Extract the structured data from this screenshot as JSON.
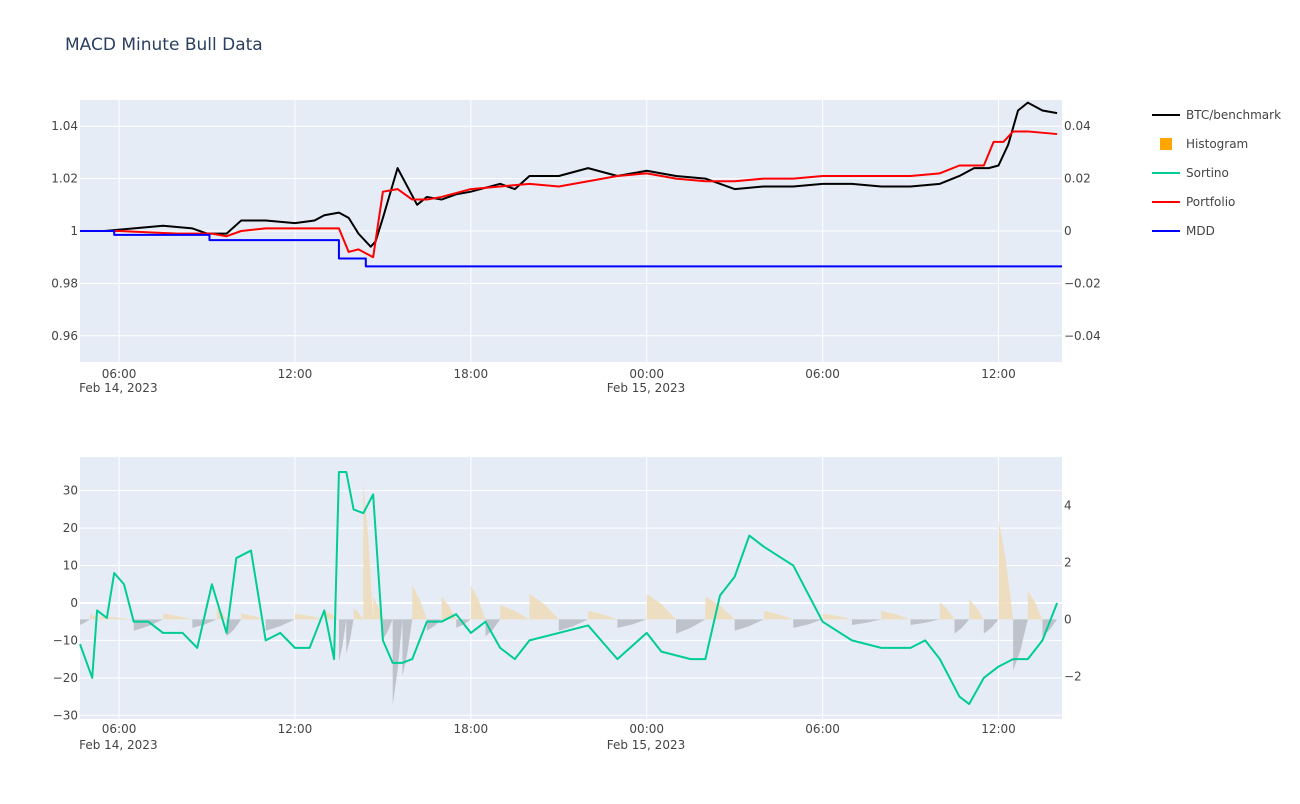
{
  "title": "MACD Minute Bull Data",
  "colors": {
    "plot_bg": "#e5ecf6",
    "grid": "#ffffff",
    "btc": "#000000",
    "portfolio": "#ff0000",
    "mdd": "#0000ff",
    "sortino": "#00cc96",
    "hist_pos": "#eeddbb",
    "hist_neg": "#b9bec6",
    "hist_legend": "#ffa500"
  },
  "legend": [
    {
      "label": "BTC/benchmark",
      "symbol": "line",
      "color": "#000000"
    },
    {
      "label": "Histogram",
      "symbol": "square",
      "color": "#ffa500"
    },
    {
      "label": "Sortino",
      "symbol": "line",
      "color": "#00cc96"
    },
    {
      "label": "Portfolio",
      "symbol": "line",
      "color": "#ff0000"
    },
    {
      "label": "MDD",
      "symbol": "line",
      "color": "#0000ff"
    }
  ],
  "chart_data": [
    {
      "type": "line",
      "panel": "top",
      "x_range": [
        "2023-02-14 04:40",
        "2023-02-15 14:10"
      ],
      "x_ticks": [
        {
          "t": "2023-02-14 06:00",
          "label": "06:00",
          "sublabel": "Feb 14, 2023"
        },
        {
          "t": "2023-02-14 12:00",
          "label": "12:00",
          "sublabel": ""
        },
        {
          "t": "2023-02-14 18:00",
          "label": "18:00",
          "sublabel": ""
        },
        {
          "t": "2023-02-15 00:00",
          "label": "00:00",
          "sublabel": "Feb 15, 2023"
        },
        {
          "t": "2023-02-15 06:00",
          "label": "06:00",
          "sublabel": ""
        },
        {
          "t": "2023-02-15 12:00",
          "label": "12:00",
          "sublabel": ""
        }
      ],
      "ylim_left": [
        0.95,
        1.05
      ],
      "y_ticks_left": [
        {
          "v": 0.96,
          "label": "0.96"
        },
        {
          "v": 0.98,
          "label": "0.98"
        },
        {
          "v": 1.0,
          "label": "1"
        },
        {
          "v": 1.02,
          "label": "1.02"
        },
        {
          "v": 1.04,
          "label": "1.04"
        }
      ],
      "ylim_right": [
        -0.05,
        0.05
      ],
      "y_ticks_right": [
        {
          "v": -0.04,
          "label": "−0.04"
        },
        {
          "v": -0.02,
          "label": "−0.02"
        },
        {
          "v": 0,
          "label": "0"
        },
        {
          "v": 0.02,
          "label": "0.02"
        },
        {
          "v": 0.04,
          "label": "0.04"
        }
      ],
      "grid": true,
      "series": [
        {
          "name": "BTC/benchmark",
          "axis": "left",
          "color": "#000000",
          "x": [
            "2023-02-14 04:40",
            "2023-02-14 05:30",
            "2023-02-14 06:30",
            "2023-02-14 07:30",
            "2023-02-14 08:30",
            "2023-02-14 09:00",
            "2023-02-14 09:40",
            "2023-02-14 10:10",
            "2023-02-14 11:00",
            "2023-02-14 12:00",
            "2023-02-14 12:40",
            "2023-02-14 13:00",
            "2023-02-14 13:30",
            "2023-02-14 13:50",
            "2023-02-14 14:10",
            "2023-02-14 14:35",
            "2023-02-14 14:45",
            "2023-02-14 15:00",
            "2023-02-14 15:30",
            "2023-02-14 15:50",
            "2023-02-14 16:10",
            "2023-02-14 16:30",
            "2023-02-14 17:00",
            "2023-02-14 17:30",
            "2023-02-14 18:00",
            "2023-02-14 19:00",
            "2023-02-14 19:30",
            "2023-02-14 20:00",
            "2023-02-14 21:00",
            "2023-02-14 22:00",
            "2023-02-14 23:00",
            "2023-02-15 00:00",
            "2023-02-15 01:00",
            "2023-02-15 02:00",
            "2023-02-15 03:00",
            "2023-02-15 04:00",
            "2023-02-15 05:00",
            "2023-02-15 06:00",
            "2023-02-15 07:00",
            "2023-02-15 08:00",
            "2023-02-15 09:00",
            "2023-02-15 10:00",
            "2023-02-15 10:40",
            "2023-02-15 11:10",
            "2023-02-15 11:40",
            "2023-02-15 12:00",
            "2023-02-15 12:20",
            "2023-02-15 12:40",
            "2023-02-15 13:00",
            "2023-02-15 13:30",
            "2023-02-15 14:00"
          ],
          "values": [
            1.0,
            1.0,
            1.001,
            1.002,
            1.001,
            0.999,
            0.999,
            1.004,
            1.004,
            1.003,
            1.004,
            1.006,
            1.007,
            1.005,
            0.999,
            0.994,
            0.996,
            1.005,
            1.024,
            1.017,
            1.01,
            1.013,
            1.012,
            1.014,
            1.015,
            1.018,
            1.016,
            1.021,
            1.021,
            1.024,
            1.021,
            1.023,
            1.021,
            1.02,
            1.016,
            1.017,
            1.017,
            1.018,
            1.018,
            1.017,
            1.017,
            1.018,
            1.021,
            1.024,
            1.024,
            1.025,
            1.033,
            1.046,
            1.049,
            1.046,
            1.045
          ]
        },
        {
          "name": "Portfolio",
          "axis": "left",
          "color": "#ff0000",
          "x": [
            "2023-02-14 04:40",
            "2023-02-14 06:00",
            "2023-02-14 08:00",
            "2023-02-14 09:10",
            "2023-02-14 09:40",
            "2023-02-14 10:10",
            "2023-02-14 11:00",
            "2023-02-14 12:00",
            "2023-02-14 13:00",
            "2023-02-14 13:30",
            "2023-02-14 13:50",
            "2023-02-14 14:10",
            "2023-02-14 14:40",
            "2023-02-14 15:00",
            "2023-02-14 15:30",
            "2023-02-14 16:00",
            "2023-02-14 16:30",
            "2023-02-14 17:00",
            "2023-02-14 18:00",
            "2023-02-14 19:00",
            "2023-02-14 20:00",
            "2023-02-14 21:00",
            "2023-02-14 22:00",
            "2023-02-14 23:00",
            "2023-02-15 00:00",
            "2023-02-15 01:00",
            "2023-02-15 02:00",
            "2023-02-15 03:00",
            "2023-02-15 04:00",
            "2023-02-15 05:00",
            "2023-02-15 06:00",
            "2023-02-15 07:00",
            "2023-02-15 08:00",
            "2023-02-15 09:00",
            "2023-02-15 10:00",
            "2023-02-15 10:40",
            "2023-02-15 11:00",
            "2023-02-15 11:30",
            "2023-02-15 11:50",
            "2023-02-15 12:10",
            "2023-02-15 12:30",
            "2023-02-15 13:00",
            "2023-02-15 14:00"
          ],
          "values": [
            1.0,
            1.0,
            0.999,
            0.999,
            0.998,
            1.0,
            1.001,
            1.001,
            1.001,
            1.001,
            0.992,
            0.993,
            0.99,
            1.015,
            1.016,
            1.012,
            1.012,
            1.013,
            1.016,
            1.017,
            1.018,
            1.017,
            1.019,
            1.021,
            1.022,
            1.02,
            1.019,
            1.019,
            1.02,
            1.02,
            1.021,
            1.021,
            1.021,
            1.021,
            1.022,
            1.025,
            1.025,
            1.025,
            1.034,
            1.034,
            1.038,
            1.038,
            1.037
          ]
        },
        {
          "name": "MDD",
          "axis": "right",
          "color": "#0000ff",
          "x": [
            "2023-02-14 04:40",
            "2023-02-14 05:50",
            "2023-02-14 09:05",
            "2023-02-14 13:30",
            "2023-02-14 14:25",
            "2023-02-15 14:10"
          ],
          "values": [
            0.0,
            -0.0015,
            -0.0035,
            -0.0105,
            -0.0135,
            -0.0135
          ],
          "step": true
        }
      ]
    },
    {
      "type": "line",
      "panel": "bottom",
      "x_range": [
        "2023-02-14 04:40",
        "2023-02-15 14:10"
      ],
      "ylim_left": [
        -31,
        39
      ],
      "y_ticks_left": [
        {
          "v": -30,
          "label": "−30"
        },
        {
          "v": -20,
          "label": "−20"
        },
        {
          "v": -10,
          "label": "−10"
        },
        {
          "v": 0,
          "label": "0"
        },
        {
          "v": 10,
          "label": "10"
        },
        {
          "v": 20,
          "label": "20"
        },
        {
          "v": 30,
          "label": "30"
        }
      ],
      "ylim_right": [
        -3.5,
        5.7
      ],
      "y_ticks_right": [
        {
          "v": -2,
          "label": "−2"
        },
        {
          "v": 0,
          "label": "0"
        },
        {
          "v": 2,
          "label": "2"
        },
        {
          "v": 4,
          "label": "4"
        }
      ],
      "grid": true,
      "series": [
        {
          "name": "Histogram",
          "axis": "right",
          "type": "area",
          "color_pos": "#eeddbb",
          "color_neg": "#b9bec6",
          "x": [
            "2023-02-14 04:40",
            "2023-02-14 05:00",
            "2023-02-14 05:20",
            "2023-02-14 06:30",
            "2023-02-14 07:30",
            "2023-02-14 08:30",
            "2023-02-14 09:20",
            "2023-02-14 09:40",
            "2023-02-14 10:10",
            "2023-02-14 11:00",
            "2023-02-14 12:00",
            "2023-02-14 13:00",
            "2023-02-14 13:30",
            "2023-02-14 13:45",
            "2023-02-14 14:00",
            "2023-02-14 14:20",
            "2023-02-14 14:40",
            "2023-02-14 15:00",
            "2023-02-14 15:20",
            "2023-02-14 15:40",
            "2023-02-14 16:00",
            "2023-02-14 16:30",
            "2023-02-14 17:00",
            "2023-02-14 17:30",
            "2023-02-14 18:00",
            "2023-02-14 18:30",
            "2023-02-14 19:00",
            "2023-02-14 20:00",
            "2023-02-14 21:00",
            "2023-02-14 22:00",
            "2023-02-14 23:00",
            "2023-02-15 00:00",
            "2023-02-15 01:00",
            "2023-02-15 02:00",
            "2023-02-15 03:00",
            "2023-02-15 04:00",
            "2023-02-15 05:00",
            "2023-02-15 06:00",
            "2023-02-15 07:00",
            "2023-02-15 08:00",
            "2023-02-15 09:00",
            "2023-02-15 10:00",
            "2023-02-15 10:30",
            "2023-02-15 11:00",
            "2023-02-15 11:30",
            "2023-02-15 12:00",
            "2023-02-15 12:30",
            "2023-02-15 13:00",
            "2023-02-15 13:30",
            "2023-02-15 14:00"
          ],
          "values": [
            -0.2,
            0.2,
            0.1,
            -0.4,
            0.2,
            -0.3,
            0.4,
            -0.6,
            0.2,
            -0.4,
            0.2,
            0.3,
            -1.5,
            -1.2,
            0.4,
            4.8,
            0.8,
            -0.7,
            -3.0,
            -2.0,
            1.2,
            -0.4,
            0.8,
            -0.3,
            1.2,
            -0.6,
            0.5,
            0.9,
            -0.4,
            0.3,
            -0.3,
            0.9,
            -0.5,
            0.8,
            -0.4,
            0.3,
            -0.3,
            0.2,
            -0.2,
            0.3,
            -0.2,
            0.6,
            -0.5,
            0.7,
            -0.5,
            3.5,
            -1.8,
            1.0,
            -0.6,
            0.5
          ]
        },
        {
          "name": "Sortino",
          "axis": "left",
          "color": "#00cc96",
          "x": [
            "2023-02-14 04:40",
            "2023-02-14 05:05",
            "2023-02-14 05:15",
            "2023-02-14 05:35",
            "2023-02-14 05:50",
            "2023-02-14 06:10",
            "2023-02-14 06:30",
            "2023-02-14 07:00",
            "2023-02-14 07:30",
            "2023-02-14 08:10",
            "2023-02-14 08:40",
            "2023-02-14 09:10",
            "2023-02-14 09:40",
            "2023-02-14 10:00",
            "2023-02-14 10:30",
            "2023-02-14 11:00",
            "2023-02-14 11:30",
            "2023-02-14 12:00",
            "2023-02-14 12:30",
            "2023-02-14 13:00",
            "2023-02-14 13:20",
            "2023-02-14 13:30",
            "2023-02-14 13:45",
            "2023-02-14 14:00",
            "2023-02-14 14:20",
            "2023-02-14 14:40",
            "2023-02-14 15:00",
            "2023-02-14 15:20",
            "2023-02-14 15:40",
            "2023-02-14 16:00",
            "2023-02-14 16:30",
            "2023-02-14 17:00",
            "2023-02-14 17:30",
            "2023-02-14 18:00",
            "2023-02-14 18:30",
            "2023-02-14 19:00",
            "2023-02-14 19:30",
            "2023-02-14 20:00",
            "2023-02-14 21:00",
            "2023-02-14 22:00",
            "2023-02-14 23:00",
            "2023-02-15 00:00",
            "2023-02-15 00:30",
            "2023-02-15 01:00",
            "2023-02-15 01:30",
            "2023-02-15 02:00",
            "2023-02-15 02:30",
            "2023-02-15 03:00",
            "2023-02-15 03:30",
            "2023-02-15 04:00",
            "2023-02-15 05:00",
            "2023-02-15 06:00",
            "2023-02-15 07:00",
            "2023-02-15 08:00",
            "2023-02-15 09:00",
            "2023-02-15 09:30",
            "2023-02-15 10:00",
            "2023-02-15 10:20",
            "2023-02-15 10:40",
            "2023-02-15 11:00",
            "2023-02-15 11:30",
            "2023-02-15 12:00",
            "2023-02-15 12:30",
            "2023-02-15 13:00",
            "2023-02-15 13:30",
            "2023-02-15 14:00"
          ],
          "values": [
            -11,
            -20,
            -2,
            -4,
            8,
            5,
            -5,
            -5,
            -8,
            -8,
            -12,
            5,
            -8,
            12,
            14,
            -10,
            -8,
            -12,
            -12,
            -2,
            -15,
            35,
            35,
            25,
            24,
            29,
            -10,
            -16,
            -16,
            -15,
            -5,
            -5,
            -3,
            -8,
            -5,
            -12,
            -15,
            -10,
            -8,
            -6,
            -15,
            -8,
            -13,
            -14,
            -15,
            -15,
            2,
            7,
            18,
            15,
            10,
            -5,
            -10,
            -12,
            -12,
            -10,
            -15,
            -20,
            -25,
            -27,
            -20,
            -17,
            -15,
            -15,
            -10,
            0
          ]
        }
      ]
    }
  ]
}
